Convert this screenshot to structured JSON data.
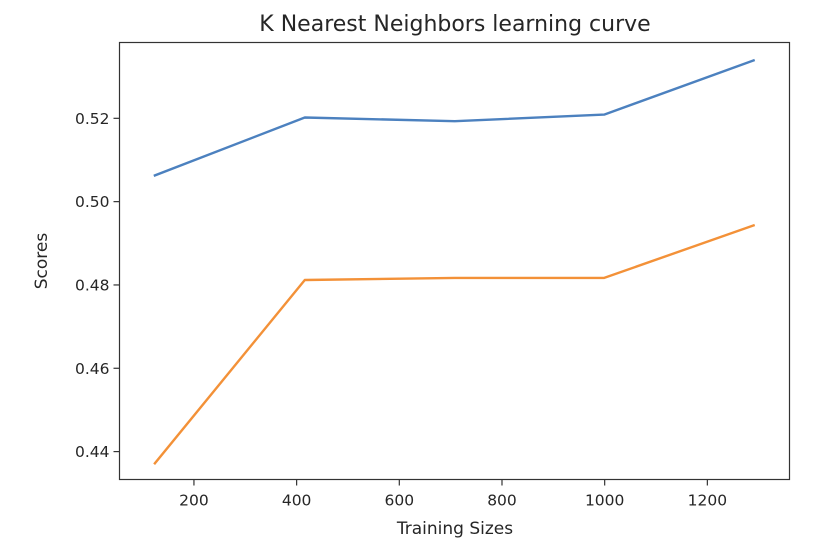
{
  "chart_data": {
    "type": "line",
    "title": "K Nearest Neighbors learning curve",
    "xlabel": "Training Sizes",
    "ylabel": "Scores",
    "xlim": [
      55,
      1360
    ],
    "ylim": [
      0.4333,
      0.5382
    ],
    "xticks": [
      200,
      400,
      600,
      800,
      1000,
      1200
    ],
    "yticks": [
      0.44,
      0.46,
      0.48,
      0.5,
      0.52
    ],
    "ytick_labels": [
      "0.44",
      "0.46",
      "0.48",
      "0.50",
      "0.52"
    ],
    "grid": false,
    "series": [
      {
        "color": "#4c81bf",
        "x": [
          124,
          416,
          708,
          999,
          1290
        ],
        "values": [
          0.5063,
          0.5202,
          0.5193,
          0.5209,
          0.5339
        ]
      },
      {
        "color": "#f39138",
        "x": [
          124,
          416,
          708,
          999,
          1290
        ],
        "values": [
          0.4372,
          0.4812,
          0.4817,
          0.4817,
          0.4943
        ]
      }
    ]
  }
}
